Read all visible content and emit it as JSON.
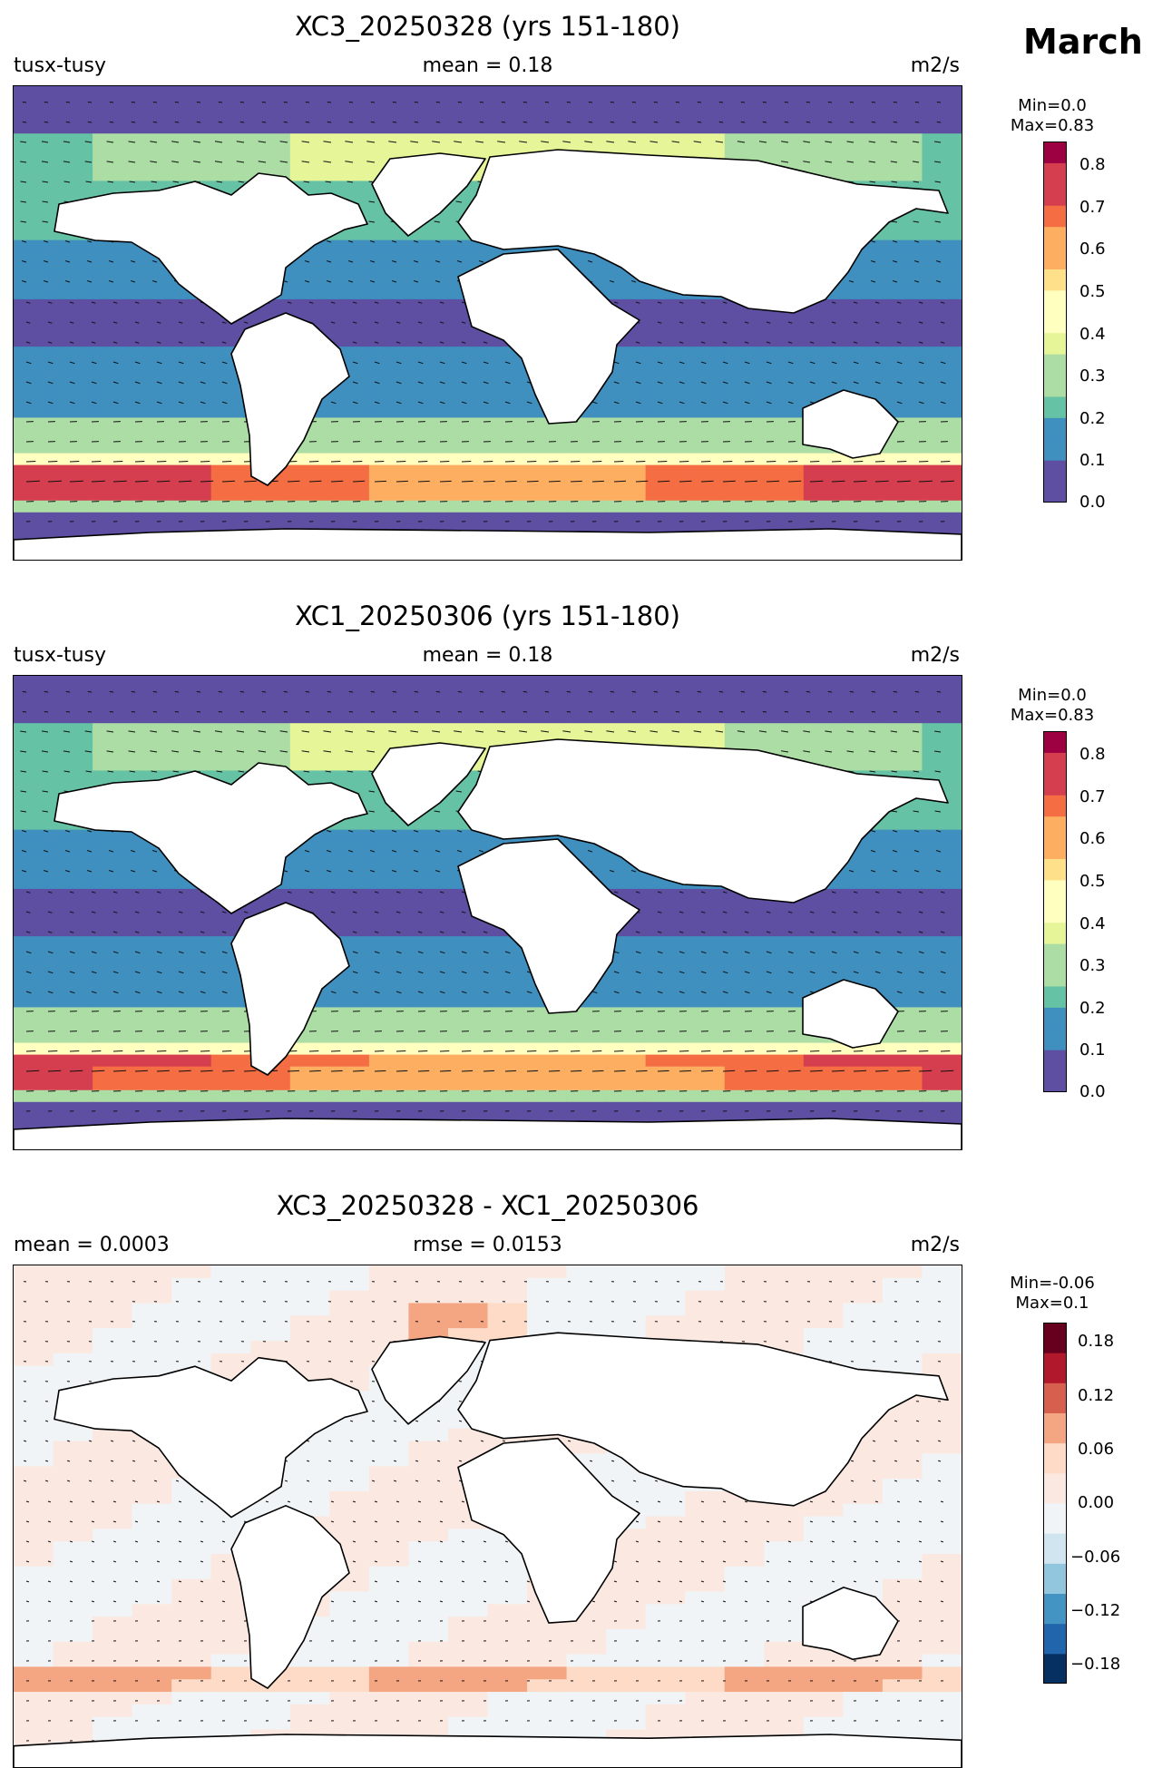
{
  "month": "March",
  "panels": [
    {
      "title": "XC3_20250328 (yrs 151-180)",
      "left_label": "tusx-tusy",
      "center_label": "mean = 0.18",
      "units": "m2/s",
      "colorbar": {
        "min_text": "Min=0.0",
        "max_text": "Max=0.83",
        "ticks": [
          "0.8",
          "0.7",
          "0.6",
          "0.5",
          "0.4",
          "0.3",
          "0.2",
          "0.1",
          "0.0"
        ]
      }
    },
    {
      "title": "XC1_20250306 (yrs 151-180)",
      "left_label": "tusx-tusy",
      "center_label": "mean = 0.18",
      "units": "m2/s",
      "colorbar": {
        "min_text": "Min=0.0",
        "max_text": "Max=0.83",
        "ticks": [
          "0.8",
          "0.7",
          "0.6",
          "0.5",
          "0.4",
          "0.3",
          "0.2",
          "0.1",
          "0.0"
        ]
      }
    },
    {
      "title": "XC3_20250328 - XC1_20250306",
      "left_label": "mean = 0.0003",
      "center_label": "rmse = 0.0153",
      "units": "m2/s",
      "colorbar": {
        "min_text": "Min=-0.06",
        "max_text": "Max=0.1",
        "ticks": [
          "0.18",
          "0.12",
          "0.06",
          "0.00",
          "−0.06",
          "−0.12",
          "−0.18"
        ]
      }
    }
  ],
  "colors": {
    "spectral": [
      "#5e4fa2",
      "#3f8fbf",
      "#66c2a5",
      "#abdda4",
      "#e6f598",
      "#ffffbf",
      "#fee08b",
      "#fdae61",
      "#f46d43",
      "#d53e4f",
      "#9e0142"
    ],
    "rdbu": [
      "#053061",
      "#2166ac",
      "#4393c3",
      "#92c5de",
      "#d1e5f0",
      "#f0f4f7",
      "#fbe9e1",
      "#fddbc7",
      "#f4a582",
      "#d6604d",
      "#b2182b",
      "#67001f"
    ]
  }
}
